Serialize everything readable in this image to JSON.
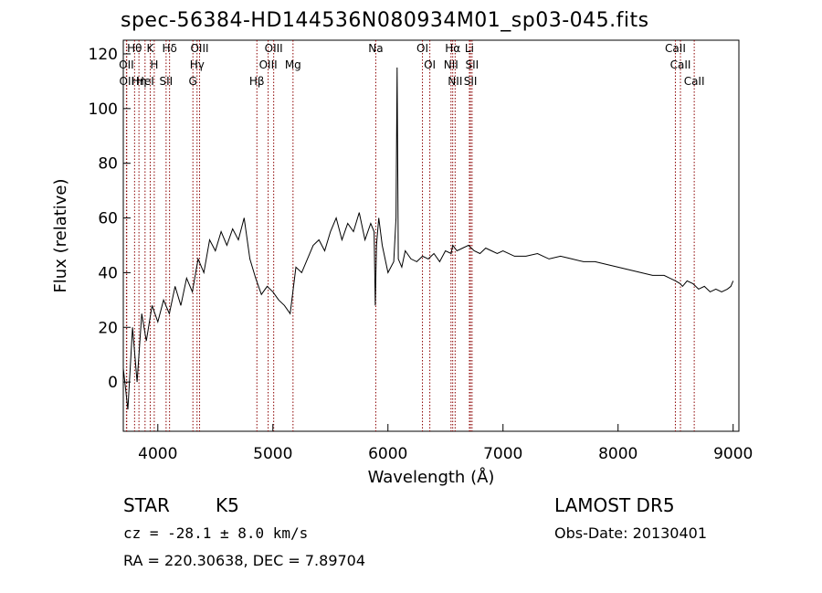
{
  "chart_data": {
    "type": "line",
    "title": "spec-56384-HD144536N080934M01_sp03-045.fits",
    "xlabel": "Wavelength (Å)",
    "ylabel": "Flux (relative)",
    "xlim": [
      3700,
      9050
    ],
    "ylim": [
      -18,
      125
    ],
    "xticks": [
      4000,
      5000,
      6000,
      7000,
      8000,
      9000
    ],
    "yticks": [
      0,
      20,
      40,
      60,
      80,
      100,
      120
    ],
    "grid": false,
    "line_color": "#000000",
    "marker_color": "#8b0000",
    "series": [
      {
        "x": [
          3700,
          3740,
          3780,
          3820,
          3860,
          3900,
          3950,
          4000,
          4050,
          4100,
          4150,
          4200,
          4250,
          4300,
          4350,
          4400,
          4450,
          4500,
          4550,
          4600,
          4650,
          4700,
          4750,
          4800,
          4850,
          4900,
          4950,
          5000,
          5050,
          5100,
          5150,
          5200,
          5250,
          5300,
          5350,
          5400,
          5450,
          5500,
          5550,
          5600,
          5650,
          5700,
          5750,
          5800,
          5850,
          5880,
          5890,
          5900,
          5920,
          5950,
          6000,
          6050,
          6070,
          6080,
          6090,
          6120,
          6150,
          6200,
          6250,
          6300,
          6350,
          6400,
          6450,
          6500,
          6550,
          6563,
          6600,
          6650,
          6700,
          6750,
          6800,
          6850,
          6900,
          6950,
          7000,
          7100,
          7200,
          7300,
          7400,
          7500,
          7600,
          7700,
          7800,
          7900,
          8000,
          8100,
          8200,
          8300,
          8400,
          8450,
          8500,
          8540,
          8560,
          8600,
          8650,
          8700,
          8750,
          8800,
          8850,
          8900,
          8950,
          8980,
          9000
        ],
        "y": [
          5,
          -10,
          20,
          0,
          25,
          15,
          28,
          22,
          30,
          25,
          35,
          28,
          38,
          33,
          45,
          40,
          52,
          48,
          55,
          50,
          56,
          52,
          60,
          45,
          38,
          32,
          35,
          33,
          30,
          28,
          25,
          42,
          40,
          45,
          50,
          52,
          48,
          55,
          60,
          52,
          58,
          55,
          62,
          52,
          58,
          55,
          28,
          50,
          60,
          50,
          40,
          44,
          60,
          115,
          45,
          42,
          48,
          45,
          44,
          46,
          45,
          47,
          44,
          48,
          47,
          50,
          48,
          49,
          50,
          48,
          47,
          49,
          48,
          47,
          48,
          46,
          46,
          47,
          45,
          46,
          45,
          44,
          44,
          43,
          42,
          41,
          40,
          39,
          39,
          38,
          37,
          36,
          35,
          37,
          36,
          34,
          35,
          33,
          34,
          33,
          34,
          35,
          37
        ]
      }
    ],
    "lines": [
      {
        "label": "Hθ",
        "wave": 3798
      },
      {
        "label": "OII",
        "wave": 3727
      },
      {
        "label": "OII",
        "wave": 3730
      },
      {
        "label": "K",
        "wave": 3934
      },
      {
        "label": "Hη",
        "wave": 3836
      },
      {
        "label": "HeI",
        "wave": 3889
      },
      {
        "label": "H",
        "wave": 3969
      },
      {
        "label": "Hδ",
        "wave": 4102
      },
      {
        "label": "SII",
        "wave": 4072
      },
      {
        "label": "OIII",
        "wave": 4363
      },
      {
        "label": "Hγ",
        "wave": 4341
      },
      {
        "label": "G",
        "wave": 4305
      },
      {
        "label": "OIII",
        "wave": 5007
      },
      {
        "label": "OIII",
        "wave": 4959
      },
      {
        "label": "Hβ",
        "wave": 4861
      },
      {
        "label": "Mg",
        "wave": 5175
      },
      {
        "label": "Na",
        "wave": 5894
      },
      {
        "label": "OI",
        "wave": 6300
      },
      {
        "label": "OI",
        "wave": 6364
      },
      {
        "label": "Hα",
        "wave": 6563
      },
      {
        "label": "NII",
        "wave": 6548
      },
      {
        "label": "NII",
        "wave": 6584
      },
      {
        "label": "SII",
        "wave": 6717
      },
      {
        "label": "Li",
        "wave": 6708
      },
      {
        "label": "SII",
        "wave": 6731
      },
      {
        "label": "CaII",
        "wave": 8498
      },
      {
        "label": "CaII",
        "wave": 8542
      },
      {
        "label": "CaII",
        "wave": 8662
      }
    ]
  },
  "info": {
    "class": "STAR",
    "subclass": "K5",
    "cz": "cz = -28.1 ± 8.0 km/s",
    "radec": "RA = 220.30638, DEC =   7.89704",
    "survey": "LAMOST DR5",
    "obsdate": "Obs-Date: 20130401"
  }
}
